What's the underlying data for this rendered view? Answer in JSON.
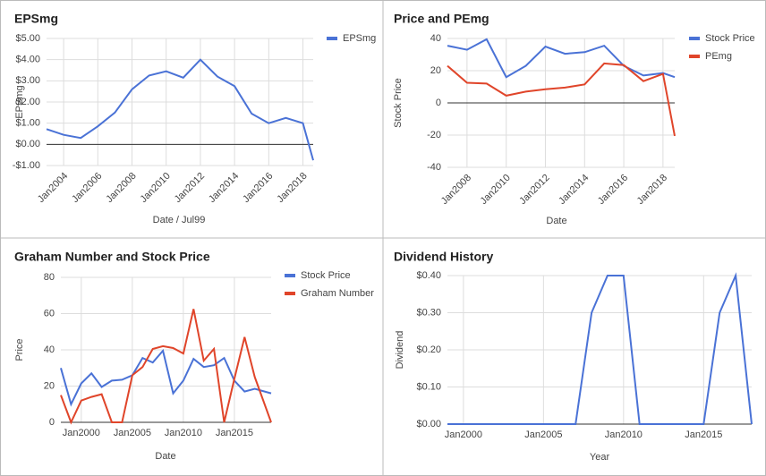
{
  "chart_data": [
    {
      "type": "line",
      "title": "EPSmg",
      "x_label": "Date / Jul99",
      "y_label": "EPSmg",
      "grid": true,
      "legend": "right",
      "x": [
        2003,
        2004,
        2005,
        2006,
        2007,
        2008,
        2009,
        2010,
        2011,
        2012,
        2013,
        2014,
        2015,
        2016,
        2017,
        2018,
        2018.6
      ],
      "series": [
        {
          "name": "EPSmg",
          "color": "#4a72d6",
          "values": [
            0.72,
            0.45,
            0.3,
            0.85,
            1.5,
            2.6,
            3.25,
            3.45,
            3.15,
            4.0,
            3.2,
            2.75,
            1.45,
            1.0,
            1.25,
            1.0,
            -0.75
          ]
        }
      ],
      "xlim": [
        2003,
        2018.6
      ],
      "xticks": [
        {
          "value": 2004,
          "label": "Jan2004"
        },
        {
          "value": 2006,
          "label": "Jan2006"
        },
        {
          "value": 2008,
          "label": "Jan2008"
        },
        {
          "value": 2010,
          "label": "Jan2010"
        },
        {
          "value": 2012,
          "label": "Jan2012"
        },
        {
          "value": 2014,
          "label": "Jan2014"
        },
        {
          "value": 2016,
          "label": "Jan2016"
        },
        {
          "value": 2018,
          "label": "Jan2018"
        }
      ],
      "ylim": [
        -1,
        5
      ],
      "yticks": [
        {
          "value": -1,
          "label": "-$1.00"
        },
        {
          "value": 0,
          "label": "$0.00"
        },
        {
          "value": 1,
          "label": "$1.00"
        },
        {
          "value": 2,
          "label": "$2.00"
        },
        {
          "value": 3,
          "label": "$3.00"
        },
        {
          "value": 4,
          "label": "$4.00"
        },
        {
          "value": 5,
          "label": "$5.00"
        }
      ]
    },
    {
      "type": "line",
      "title": "Price and PEmg",
      "x_label": "Date",
      "y_label": "Stock Price",
      "grid": true,
      "legend": "right",
      "x": [
        2007,
        2008,
        2009,
        2010,
        2011,
        2012,
        2013,
        2014,
        2015,
        2016,
        2017,
        2018,
        2018.6
      ],
      "series": [
        {
          "name": "Stock Price",
          "color": "#4a72d6",
          "values": [
            35.5,
            33,
            39.5,
            16,
            23,
            35,
            30.5,
            31.5,
            35.5,
            23,
            17,
            18.5,
            16
          ]
        },
        {
          "name": "PEmg",
          "color": "#e0452a",
          "values": [
            23,
            12.5,
            12,
            4.5,
            7,
            8.5,
            9.5,
            11.5,
            24.5,
            23.5,
            13.5,
            18,
            -20.5
          ]
        }
      ],
      "xlim": [
        2007,
        2018.6
      ],
      "xticks": [
        {
          "value": 2008,
          "label": "Jan2008"
        },
        {
          "value": 2010,
          "label": "Jan2010"
        },
        {
          "value": 2012,
          "label": "Jan2012"
        },
        {
          "value": 2014,
          "label": "Jan2014"
        },
        {
          "value": 2016,
          "label": "Jan2016"
        },
        {
          "value": 2018,
          "label": "Jan2018"
        }
      ],
      "ylim": [
        -40,
        40
      ],
      "yticks": [
        -40,
        -20,
        0,
        20,
        40
      ]
    },
    {
      "type": "line",
      "title": "Graham Number and Stock Price",
      "x_label": "Date",
      "y_label": "Price",
      "grid": true,
      "legend": "right",
      "x": [
        1998,
        1999,
        2000,
        2001,
        2002,
        2003,
        2004,
        2005,
        2006,
        2007,
        2008,
        2009,
        2010,
        2011,
        2012,
        2013,
        2014,
        2015,
        2016,
        2017,
        2018.6
      ],
      "series": [
        {
          "name": "Stock Price",
          "color": "#4a72d6",
          "values": [
            30,
            10,
            21.5,
            27,
            19.5,
            23,
            23.5,
            26,
            35.5,
            33,
            39.5,
            16,
            23,
            35,
            30.5,
            31.5,
            35.5,
            23,
            17,
            18.5,
            16
          ]
        },
        {
          "name": "Graham Number",
          "color": "#e0452a",
          "values": [
            15,
            0,
            12,
            14,
            15.5,
            0,
            0,
            26,
            30.5,
            40.5,
            42,
            41,
            38,
            62.5,
            34,
            40.5,
            0,
            24,
            47,
            25,
            0
          ]
        }
      ],
      "xlim": [
        1998,
        2018.6
      ],
      "xticks": [
        {
          "value": 2000,
          "label": "Jan2000"
        },
        {
          "value": 2005,
          "label": "Jan2005"
        },
        {
          "value": 2010,
          "label": "Jan2010"
        },
        {
          "value": 2015,
          "label": "Jan2015"
        }
      ],
      "ylim": [
        0,
        80
      ],
      "yticks": [
        0,
        20,
        40,
        60,
        80
      ]
    },
    {
      "type": "line",
      "title": "Dividend History",
      "x_label": "Year",
      "y_label": "Dividend",
      "grid": true,
      "x": [
        1999,
        2000,
        2001,
        2002,
        2003,
        2004,
        2005,
        2006,
        2007,
        2008,
        2009,
        2010,
        2011,
        2012,
        2013,
        2014,
        2015,
        2016,
        2017,
        2018
      ],
      "series": [
        {
          "color": "#4a72d6",
          "values": [
            0,
            0,
            0,
            0,
            0,
            0,
            0,
            0,
            0,
            0.3,
            0.4,
            0.4,
            0,
            0,
            0,
            0,
            0,
            0.3,
            0.4,
            0
          ]
        }
      ],
      "xlim": [
        1999,
        2018
      ],
      "xticks": [
        {
          "value": 2000,
          "label": "Jan2000"
        },
        {
          "value": 2005,
          "label": "Jan2005"
        },
        {
          "value": 2010,
          "label": "Jan2010"
        },
        {
          "value": 2015,
          "label": "Jan2015"
        }
      ],
      "ylim": [
        0,
        0.4
      ],
      "yticks": [
        {
          "value": 0,
          "label": "$0.00"
        },
        {
          "value": 0.1,
          "label": "$0.10"
        },
        {
          "value": 0.2,
          "label": "$0.20"
        },
        {
          "value": 0.3,
          "label": "$0.30"
        },
        {
          "value": 0.4,
          "label": "$0.40"
        }
      ]
    }
  ]
}
